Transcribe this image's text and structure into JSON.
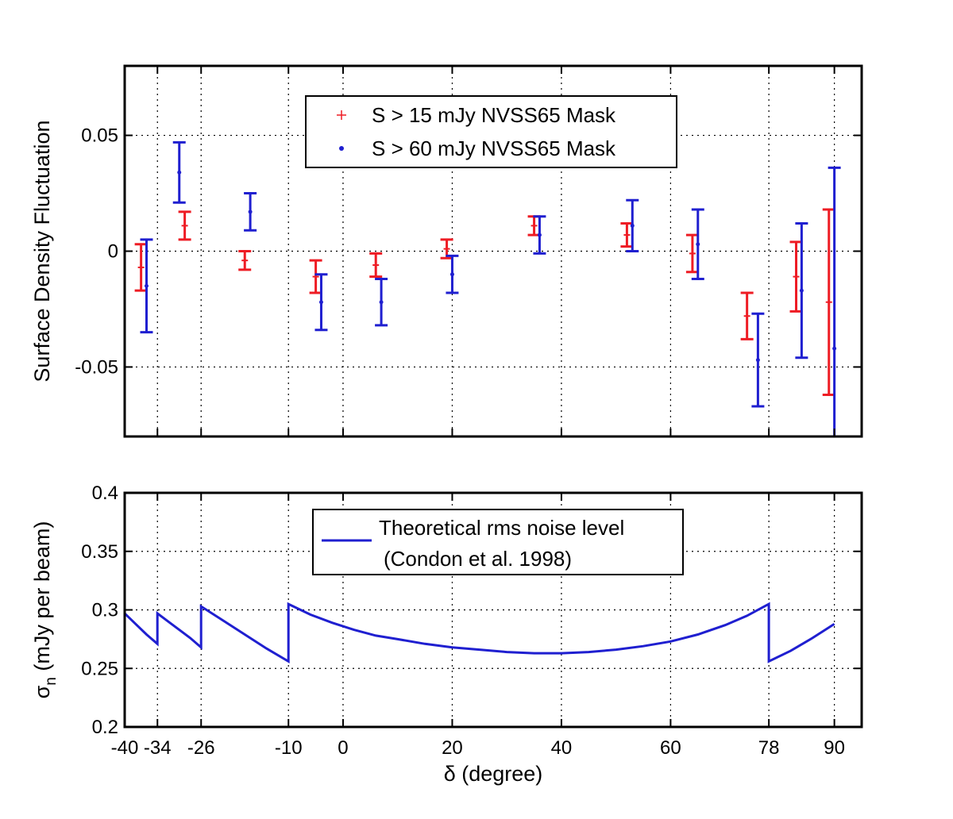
{
  "chart_data": [
    {
      "type": "scatter",
      "ylabel": "Surface Density Fluctuation",
      "xlim": [
        -40,
        95
      ],
      "ylim": [
        -0.08,
        0.08
      ],
      "x_ticks": [
        -40,
        -34,
        -26,
        -10,
        0,
        20,
        40,
        60,
        78,
        90
      ],
      "y_ticks": [
        -0.05,
        0,
        0.05
      ],
      "y_tick_labels": [
        "-0.05",
        "0",
        "0.05"
      ],
      "grid": true,
      "legend": {
        "placement": "top-center",
        "entries": [
          "S > 15 mJy NVSS65 Mask",
          "S > 60 mJy NVSS65 Mask"
        ]
      },
      "series": [
        {
          "name": "S > 15 mJy NVSS65 Mask",
          "color": "#ee1c24",
          "marker": "+",
          "x": [
            -37,
            -29,
            -18,
            -5,
            6,
            19,
            35,
            52,
            64,
            74,
            83,
            89
          ],
          "y": [
            -0.007,
            0.011,
            -0.004,
            -0.011,
            -0.006,
            0.001,
            0.011,
            0.007,
            -0.001,
            -0.028,
            -0.011,
            -0.022
          ],
          "err": [
            0.01,
            0.006,
            0.004,
            0.007,
            0.005,
            0.004,
            0.004,
            0.005,
            0.008,
            0.01,
            0.015,
            0.04
          ]
        },
        {
          "name": "S > 60 mJy NVSS65 Mask",
          "color": "#1f1fd0",
          "marker": ".",
          "x": [
            -36,
            -30,
            -17,
            -4,
            7,
            20,
            36,
            53,
            65,
            76,
            84,
            90
          ],
          "y": [
            -0.015,
            0.034,
            0.017,
            -0.022,
            -0.022,
            -0.01,
            0.007,
            0.011,
            0.003,
            -0.047,
            -0.017,
            -0.042
          ],
          "err": [
            0.02,
            0.013,
            0.008,
            0.012,
            0.01,
            0.008,
            0.008,
            0.011,
            0.015,
            0.02,
            0.029,
            0.078
          ]
        }
      ]
    },
    {
      "type": "line",
      "xlabel": "δ (degree)",
      "ylabel": "σ_n (mJy per beam)",
      "xlim": [
        -40,
        95
      ],
      "ylim": [
        0.2,
        0.4
      ],
      "x_ticks": [
        -40,
        -34,
        -26,
        -10,
        0,
        20,
        40,
        60,
        78,
        90
      ],
      "y_ticks": [
        0.2,
        0.25,
        0.3,
        0.35,
        0.4
      ],
      "y_tick_labels": [
        "0.2",
        "0.25",
        "0.3",
        "0.35",
        "0.4"
      ],
      "grid": true,
      "legend": {
        "placement": "top-center",
        "entries": [
          "Theoretical rms noise level",
          "(Condon et al. 1998)"
        ]
      },
      "series": [
        {
          "name": "Theoretical rms noise level (Condon et al. 1998)",
          "color": "#1f1fd0",
          "x": [
            -40,
            -38,
            -36,
            -34,
            -34,
            -32,
            -30,
            -28,
            -26,
            -26,
            -22,
            -18,
            -14,
            -10,
            -10,
            -6,
            -2,
            2,
            6,
            10,
            15,
            20,
            25,
            30,
            35,
            40,
            45,
            50,
            55,
            60,
            65,
            70,
            74,
            78,
            78,
            82,
            86,
            90
          ],
          "y": [
            0.297,
            0.288,
            0.279,
            0.271,
            0.297,
            0.29,
            0.283,
            0.276,
            0.268,
            0.303,
            0.291,
            0.279,
            0.267,
            0.256,
            0.305,
            0.296,
            0.289,
            0.283,
            0.278,
            0.275,
            0.271,
            0.268,
            0.266,
            0.264,
            0.263,
            0.263,
            0.264,
            0.266,
            0.269,
            0.273,
            0.279,
            0.287,
            0.295,
            0.305,
            0.256,
            0.265,
            0.276,
            0.288
          ]
        }
      ]
    }
  ]
}
